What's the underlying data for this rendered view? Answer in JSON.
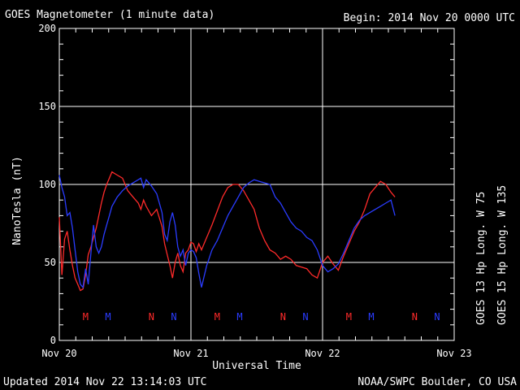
{
  "header": {
    "title": "GOES Magnetometer (1 minute data)",
    "begin": "Begin:  2014 Nov 20 0000 UTC"
  },
  "footer": {
    "updated": "Updated 2014 Nov 22 13:14:03 UTC",
    "credit": "NOAA/SWPC Boulder, CO USA"
  },
  "colors": {
    "goes13": "#ff2a2a",
    "goes15": "#2a3cff",
    "grid": "#ffffff",
    "background": "#000000"
  },
  "chart_data": {
    "type": "line",
    "title": "GOES Magnetometer (1 minute data)",
    "xlabel": "Universal Time",
    "ylabel": "NanoTesla (nT)",
    "xlim": [
      0,
      3
    ],
    "ylim": [
      0,
      200
    ],
    "y_ticks": [
      0,
      50,
      100,
      150,
      200
    ],
    "x_ticks": [
      {
        "value": 0,
        "label": "Nov 20"
      },
      {
        "value": 1,
        "label": "Nov 21"
      },
      {
        "value": 2,
        "label": "Nov 22"
      },
      {
        "value": 3,
        "label": "Nov 23"
      }
    ],
    "grid": true,
    "legend": "right (vertical)",
    "series": [
      {
        "name": "GOES 13 Hp",
        "legend_label": "GOES 13 Hp  Long. W 75",
        "color": "#ff2a2a",
        "x": [
          0.0,
          0.02,
          0.04,
          0.06,
          0.08,
          0.1,
          0.12,
          0.14,
          0.16,
          0.18,
          0.2,
          0.22,
          0.24,
          0.26,
          0.28,
          0.3,
          0.32,
          0.34,
          0.36,
          0.38,
          0.4,
          0.44,
          0.48,
          0.52,
          0.56,
          0.6,
          0.62,
          0.64,
          0.66,
          0.7,
          0.74,
          0.78,
          0.8,
          0.82,
          0.84,
          0.86,
          0.88,
          0.9,
          0.92,
          0.94,
          0.96,
          0.98,
          1.0,
          1.02,
          1.04,
          1.06,
          1.08,
          1.12,
          1.16,
          1.2,
          1.24,
          1.28,
          1.32,
          1.36,
          1.4,
          1.44,
          1.48,
          1.52,
          1.56,
          1.6,
          1.64,
          1.68,
          1.72,
          1.76,
          1.8,
          1.84,
          1.88,
          1.92,
          1.96,
          2.0,
          2.04,
          2.08,
          2.12,
          2.16,
          2.2,
          2.24,
          2.28,
          2.32,
          2.36,
          2.4,
          2.44,
          2.48,
          2.52,
          2.55
        ],
        "y": [
          79,
          42,
          65,
          70,
          58,
          48,
          40,
          36,
          32,
          33,
          42,
          55,
          60,
          66,
          72,
          80,
          88,
          95,
          100,
          104,
          108,
          106,
          104,
          96,
          92,
          88,
          84,
          90,
          86,
          80,
          84,
          73,
          62,
          55,
          48,
          40,
          50,
          56,
          48,
          44,
          56,
          58,
          63,
          62,
          57,
          62,
          58,
          66,
          74,
          83,
          92,
          98,
          100,
          100,
          96,
          90,
          84,
          72,
          64,
          58,
          56,
          52,
          54,
          52,
          48,
          47,
          46,
          42,
          40,
          50,
          54,
          49,
          45,
          54,
          62,
          70,
          76,
          84,
          94,
          98,
          102,
          100,
          95,
          92
        ]
      },
      {
        "name": "GOES 15 Hp",
        "legend_label": "GOES 15 Hp  Long. W 135",
        "color": "#2a3cff",
        "x": [
          0.0,
          0.02,
          0.04,
          0.06,
          0.08,
          0.1,
          0.12,
          0.14,
          0.16,
          0.18,
          0.2,
          0.22,
          0.24,
          0.26,
          0.28,
          0.3,
          0.32,
          0.34,
          0.36,
          0.38,
          0.4,
          0.44,
          0.48,
          0.52,
          0.56,
          0.6,
          0.62,
          0.64,
          0.66,
          0.7,
          0.74,
          0.78,
          0.8,
          0.82,
          0.84,
          0.86,
          0.88,
          0.9,
          0.92,
          0.94,
          0.96,
          0.98,
          1.0,
          1.02,
          1.04,
          1.06,
          1.08,
          1.12,
          1.16,
          1.2,
          1.24,
          1.28,
          1.32,
          1.36,
          1.4,
          1.44,
          1.48,
          1.52,
          1.56,
          1.6,
          1.64,
          1.68,
          1.72,
          1.76,
          1.8,
          1.84,
          1.88,
          1.92,
          1.96,
          2.0,
          2.04,
          2.08,
          2.12,
          2.16,
          2.2,
          2.24,
          2.28,
          2.32,
          2.36,
          2.4,
          2.44,
          2.48,
          2.52,
          2.55
        ],
        "y": [
          106,
          98,
          92,
          80,
          82,
          72,
          58,
          44,
          36,
          34,
          46,
          36,
          56,
          74,
          60,
          56,
          60,
          68,
          74,
          80,
          86,
          92,
          96,
          99,
          101,
          103,
          104,
          98,
          103,
          99,
          94,
          82,
          68,
          64,
          76,
          82,
          74,
          60,
          54,
          58,
          48,
          56,
          58,
          57,
          53,
          43,
          34,
          48,
          58,
          64,
          72,
          80,
          86,
          92,
          98,
          101,
          103,
          102,
          101,
          100,
          92,
          88,
          82,
          76,
          72,
          70,
          66,
          64,
          58,
          48,
          44,
          46,
          49,
          56,
          64,
          72,
          77,
          80,
          82,
          84,
          86,
          88,
          90,
          80
        ]
      }
    ],
    "annotations": [
      {
        "label": "M",
        "series": "GOES 13 Hp",
        "x": 0.2
      },
      {
        "label": "M",
        "series": "GOES 15 Hp",
        "x": 0.37
      },
      {
        "label": "N",
        "series": "GOES 13 Hp",
        "x": 0.7
      },
      {
        "label": "N",
        "series": "GOES 15 Hp",
        "x": 0.87
      },
      {
        "label": "M",
        "series": "GOES 13 Hp",
        "x": 1.2
      },
      {
        "label": "M",
        "series": "GOES 15 Hp",
        "x": 1.37
      },
      {
        "label": "N",
        "series": "GOES 13 Hp",
        "x": 1.7
      },
      {
        "label": "N",
        "series": "GOES 15 Hp",
        "x": 1.87
      },
      {
        "label": "M",
        "series": "GOES 13 Hp",
        "x": 2.2
      },
      {
        "label": "M",
        "series": "GOES 15 Hp",
        "x": 2.37
      },
      {
        "label": "N",
        "series": "GOES 13 Hp",
        "x": 2.7
      },
      {
        "label": "N",
        "series": "GOES 15 Hp",
        "x": 2.87
      }
    ]
  }
}
